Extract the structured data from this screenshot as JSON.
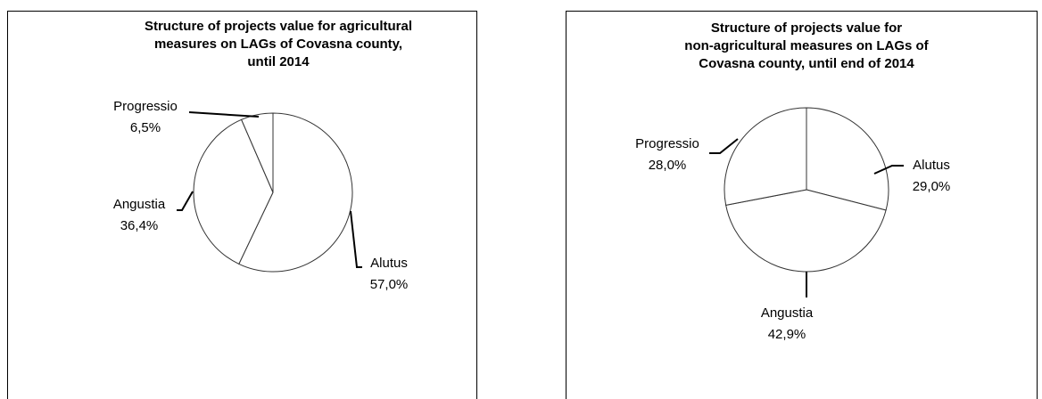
{
  "chart_data": [
    {
      "type": "pie",
      "title": [
        "Structure of projects value for agricultural",
        "measures on LAGs of Covasna county,",
        "until 2014"
      ],
      "categories": [
        "Alutus",
        "Angustia",
        "Progressio"
      ],
      "values": [
        57.0,
        36.4,
        6.5
      ],
      "value_labels": [
        "57,0%",
        "36,4%",
        "6,5%"
      ],
      "color": "#ffffff"
    },
    {
      "type": "pie",
      "title": [
        "Structure of projects value for",
        "non-agricultural measures on LAGs of",
        "Covasna county, until end of 2014"
      ],
      "categories": [
        "Alutus",
        "Angustia",
        "Progressio"
      ],
      "values": [
        29.0,
        42.9,
        28.0
      ],
      "value_labels": [
        "29,0%",
        "42,9%",
        "28,0%"
      ],
      "color": "#ffffff"
    }
  ]
}
